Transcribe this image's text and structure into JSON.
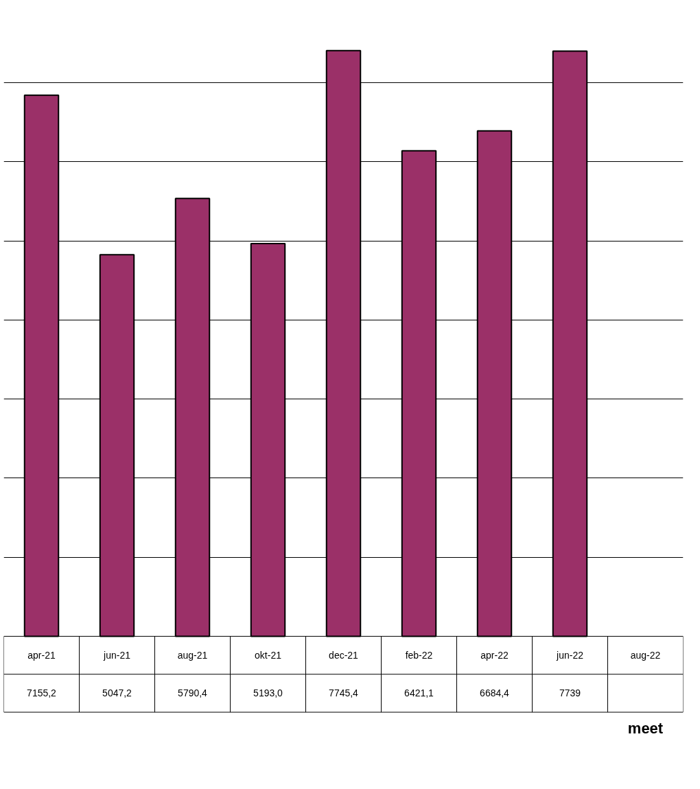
{
  "chart_data": {
    "type": "bar",
    "xlabel": "meet",
    "categories": [
      "apr-21",
      "jun-21",
      "aug-21",
      "okt-21",
      "dec-21",
      "feb-22",
      "apr-22",
      "jun-22",
      "aug-22"
    ],
    "values": [
      7155.2,
      5047.2,
      5790.4,
      5193.0,
      7745.4,
      6421.1,
      6684.4,
      7739,
      null
    ],
    "value_labels": [
      "7155,2",
      "5047,2",
      "5790,4",
      "5193,0",
      "7745,4",
      "6421,1",
      "6684,4",
      "7739",
      null
    ],
    "color": "#9b3068",
    "grid": "y"
  }
}
